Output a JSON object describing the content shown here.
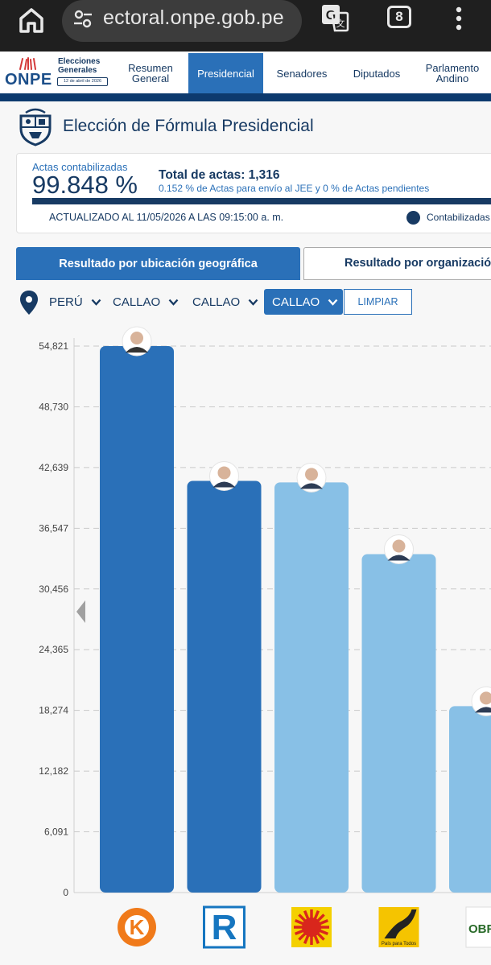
{
  "browser": {
    "url": "ectoral.onpe.gob.pe",
    "tab_count": "8"
  },
  "header": {
    "logo": "ONPE",
    "event_line1": "Elecciones",
    "event_line2": "Generales",
    "event_date": "12 de abril de 2026",
    "nav": [
      {
        "label_line1": "Resumen",
        "label_line2": "General"
      },
      {
        "label_line1": "Presidencial",
        "label_line2": ""
      },
      {
        "label_line1": "Senadores",
        "label_line2": ""
      },
      {
        "label_line1": "Diputados",
        "label_line2": ""
      },
      {
        "label_line1": "Parlamento",
        "label_line2": "Andino"
      }
    ]
  },
  "page": {
    "title": "Elección de Fórmula Presidencial"
  },
  "actas": {
    "label": "Actas contabilizadas",
    "percent": "99.848 %",
    "percent_value": 99.848,
    "total": "Total de actas: 1,316",
    "pending": "0.152 % de Actas para envío al JEE y 0 % de Actas pendientes",
    "updated": "ACTUALIZADO AL 11/05/2026 A LAS 09:15:00 a. m.",
    "legend_label": "Contabilizadas"
  },
  "tabs": {
    "geo": "Resultado por ubicación geográfica",
    "org": "Resultado por organización política"
  },
  "filters": {
    "level1": "PERÚ",
    "level2": "CALLAO",
    "level3": "CALLAO",
    "level4": "CALLAO",
    "clear": "LIMPIAR"
  },
  "colors": {
    "dark_blue": "#173a63",
    "accent_blue": "#2a70b8",
    "bar_dark": "#2a70b8",
    "bar_light": "#88c0e6"
  },
  "chart_data": {
    "type": "bar",
    "y_ticks": [
      "54,821",
      "48,730",
      "42,639",
      "36,547",
      "30,456",
      "24,365",
      "18,274",
      "12,182",
      "6,091",
      "0"
    ],
    "ylim": [
      0,
      54821
    ],
    "grid": true,
    "bars": [
      {
        "value": 54821,
        "color": "#2a70b8",
        "logo": "K"
      },
      {
        "value": 41300,
        "color": "#2a70b8",
        "logo": "R"
      },
      {
        "value": 41150,
        "color": "#88c0e6",
        "logo": "sun"
      },
      {
        "value": 33950,
        "color": "#88c0e6",
        "logo": "road",
        "logo_caption": "País para Todos"
      },
      {
        "value": 18700,
        "color": "#88c0e6",
        "logo": "OBRA"
      }
    ]
  }
}
